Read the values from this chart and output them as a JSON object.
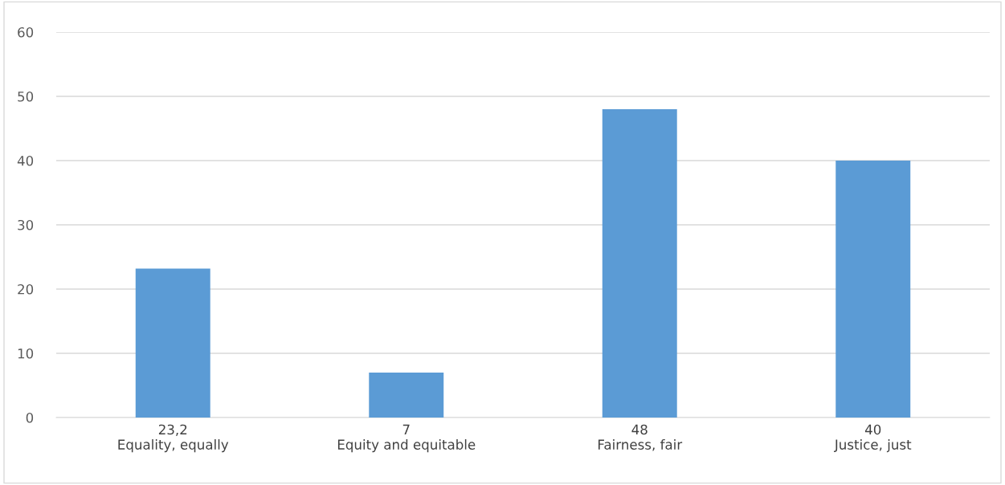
{
  "chart_data": {
    "type": "bar",
    "categories": [
      "23,2\nEquality, equally",
      "7\nEquity and equitable",
      "48\nFairness, fair",
      "40\nJustice, just"
    ],
    "values": [
      23.2,
      7,
      48,
      40
    ],
    "color": "#5b9bd5",
    "ylim": [
      0,
      60
    ],
    "yticks": [
      0,
      10,
      20,
      30,
      40,
      50,
      60
    ],
    "grid": "y",
    "legend": false
  }
}
